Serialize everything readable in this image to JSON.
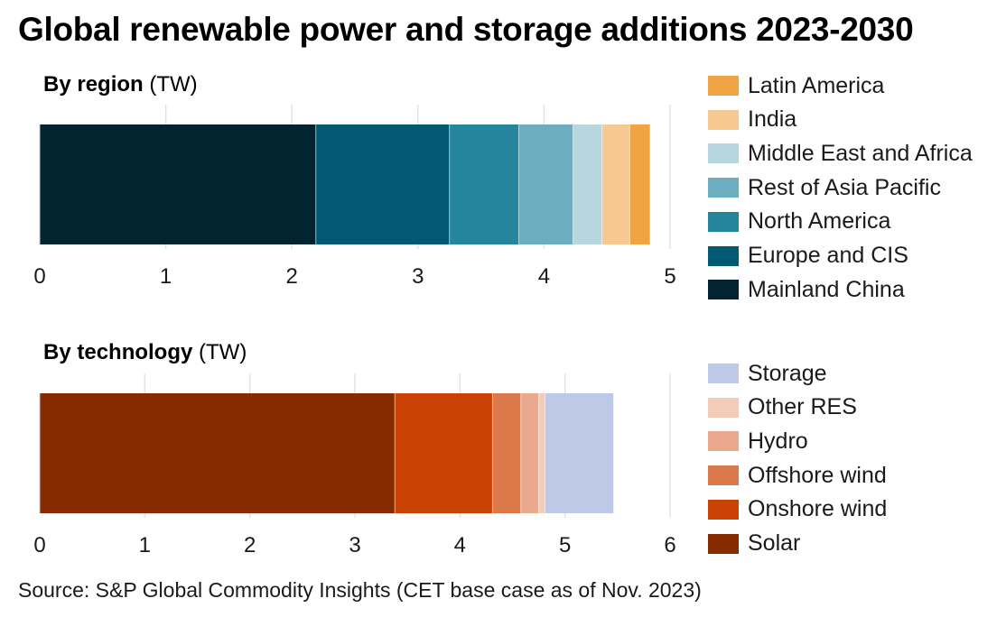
{
  "title": "Global renewable power and storage additions 2023-2030",
  "source": "Source: S&P Global Commodity Insights (CET base case as of Nov. 2023)",
  "chart_data": [
    {
      "type": "bar",
      "orientation": "horizontal-stacked",
      "title_bold": "By region",
      "title_unit": "(TW)",
      "xlim": [
        0,
        5
      ],
      "ticks": [
        0,
        1,
        2,
        3,
        4,
        5
      ],
      "grid": true,
      "legend_position": "right",
      "series": [
        {
          "name": "Mainland China",
          "value": 2.19,
          "color": "#022430"
        },
        {
          "name": "Europe and CIS",
          "value": 1.06,
          "color": "#015a71"
        },
        {
          "name": "North America",
          "value": 0.55,
          "color": "#25859d"
        },
        {
          "name": "Rest of Asia Pacific",
          "value": 0.43,
          "color": "#6cadbf"
        },
        {
          "name": "Middle East and Africa",
          "value": 0.23,
          "color": "#b7d7df"
        },
        {
          "name": "India",
          "value": 0.22,
          "color": "#f6c892"
        },
        {
          "name": "Latin America",
          "value": 0.16,
          "color": "#f0a443"
        }
      ],
      "legend_order": [
        "Latin America",
        "India",
        "Middle East and Africa",
        "Rest of Asia Pacific",
        "North America",
        "Europe and CIS",
        "Mainland China"
      ]
    },
    {
      "type": "bar",
      "orientation": "horizontal-stacked",
      "title_bold": "By technology",
      "title_unit": "(TW)",
      "xlim": [
        0,
        6
      ],
      "ticks": [
        0,
        1,
        2,
        3,
        4,
        5,
        6
      ],
      "grid": true,
      "legend_position": "right",
      "series": [
        {
          "name": "Solar",
          "value": 3.38,
          "color": "#862b00"
        },
        {
          "name": "Onshore wind",
          "value": 0.93,
          "color": "#c94103"
        },
        {
          "name": "Offshore wind",
          "value": 0.27,
          "color": "#dc794b"
        },
        {
          "name": "Hydro",
          "value": 0.17,
          "color": "#eaa98c"
        },
        {
          "name": "Other RES",
          "value": 0.06,
          "color": "#f3cbb9"
        },
        {
          "name": "Storage",
          "value": 0.65,
          "color": "#bec8e7"
        }
      ],
      "legend_order": [
        "Storage",
        "Other RES",
        "Hydro",
        "Offshore wind",
        "Onshore wind",
        "Solar"
      ]
    }
  ]
}
